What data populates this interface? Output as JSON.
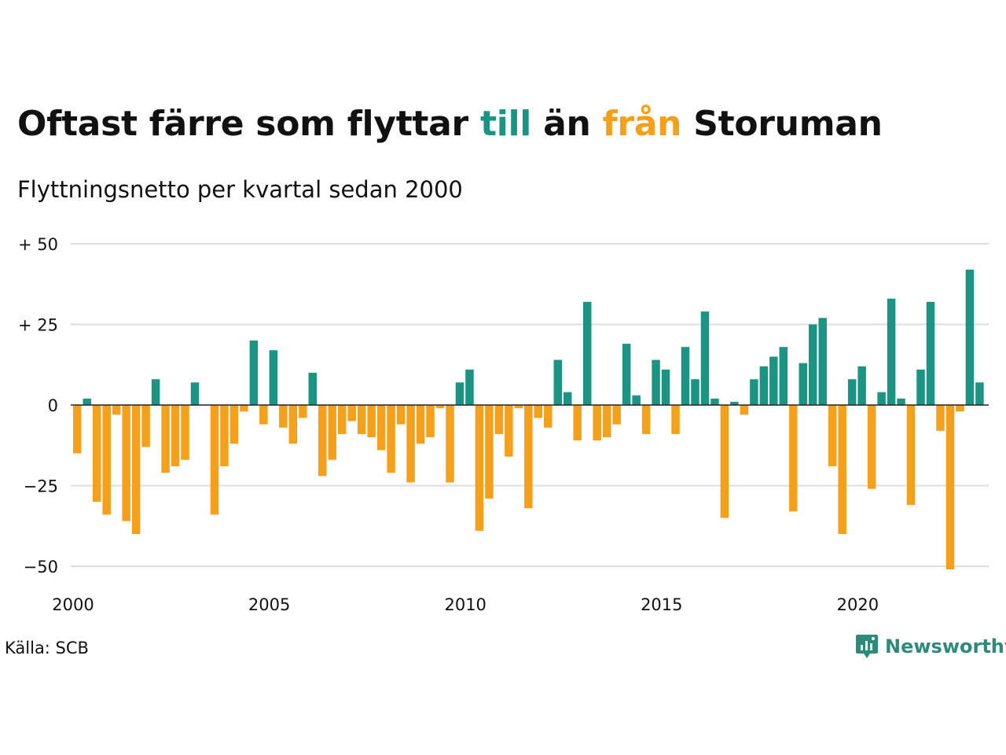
{
  "header": {
    "title_part1": "Oftast färre som flyttar ",
    "title_till": "till",
    "title_part2": " än ",
    "title_fran": "från",
    "title_part3": " Storuman",
    "subtitle": "Flyttningsnetto per kvartal sedan 2000"
  },
  "footer": {
    "source": "Källa: SCB",
    "brand": "Newsworthy"
  },
  "colors": {
    "positive": "#1b9484",
    "negative": "#f5a01a",
    "brand": "#2e8b7a",
    "grid": "#dddddd"
  },
  "chart_data": {
    "type": "bar",
    "title": "Oftast färre som flyttar till än från Storuman",
    "subtitle": "Flyttningsnetto per kvartal sedan 2000",
    "xlabel": "",
    "ylabel": "",
    "start_year": 2000,
    "periods_per_year": 4,
    "ylim": [
      -55,
      50
    ],
    "yticks": [
      50,
      25,
      0,
      -25,
      -50
    ],
    "ytick_labels": [
      "+ 50",
      "+ 25",
      "0",
      "−25",
      "−50"
    ],
    "xticks": [
      2000,
      2005,
      2010,
      2015,
      2020
    ],
    "xtick_labels": [
      "2000",
      "2005",
      "2010",
      "2015",
      "2020"
    ],
    "grid": true,
    "series": [
      {
        "values": [
          -15,
          2,
          -30,
          -34,
          -3,
          -36,
          -40,
          -13,
          8,
          -21,
          -19,
          -17,
          7,
          0,
          -34,
          -19,
          -12,
          -2,
          20,
          -6,
          17,
          -7,
          -12,
          -4,
          10,
          -22,
          -17,
          -9,
          -5,
          -9,
          -10,
          -14,
          -21,
          -6,
          -24,
          -12,
          -10,
          -1,
          -24,
          7,
          11,
          -39,
          -29,
          -9,
          -16,
          -1,
          -32,
          -4,
          -7,
          14,
          4,
          -11,
          32,
          -11,
          -10,
          -6,
          19,
          3,
          -9,
          14,
          11,
          -9,
          18,
          8,
          29,
          2,
          -35,
          1,
          -3,
          8,
          12,
          15,
          18,
          -33,
          13,
          25,
          27,
          -19,
          -40,
          8,
          12,
          -26,
          4,
          33,
          2,
          -31,
          11,
          32,
          -8,
          -51,
          -2,
          42,
          7
        ]
      }
    ]
  }
}
